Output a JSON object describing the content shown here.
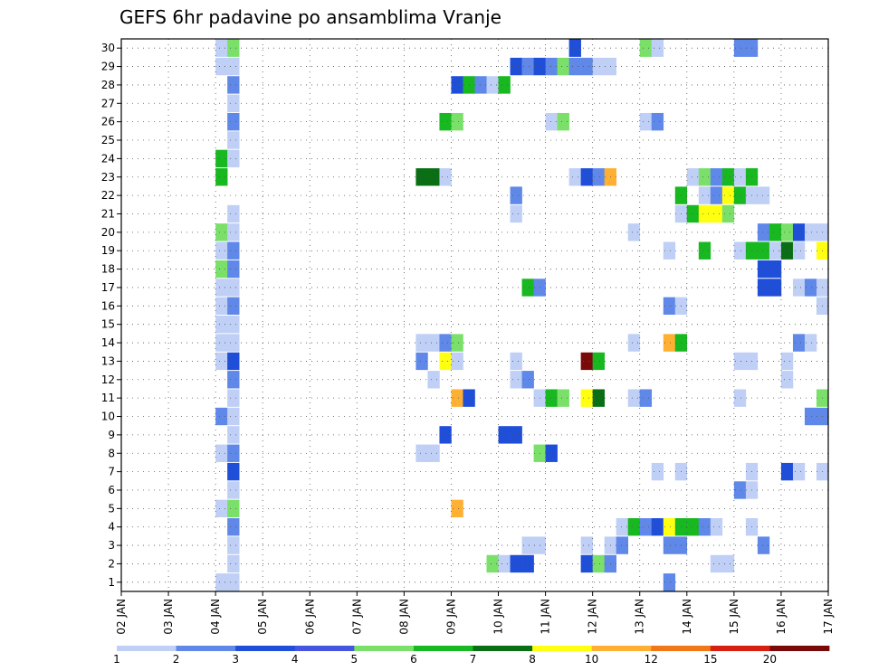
{
  "chart_data": {
    "type": "heatmap",
    "title": "GEFS 6hr padavine po ansamblima Vranje",
    "xlabel": "",
    "ylabel": "",
    "x_ticks": [
      "02 JAN",
      "03 JAN",
      "04 JAN",
      "05 JAN",
      "06 JAN",
      "07 JAN",
      "08 JAN",
      "09 JAN",
      "10 JAN",
      "11 JAN",
      "12 JAN",
      "13 JAN",
      "14 JAN",
      "15 JAN",
      "16 JAN",
      "17 JAN"
    ],
    "y_range": [
      1,
      30
    ],
    "grid": true,
    "legend_placement": "bottom",
    "colorbar": {
      "labels": [
        "1",
        "2",
        "3",
        "4",
        "5",
        "6",
        "7",
        "8",
        "10",
        "12",
        "15",
        "20"
      ],
      "colors": [
        "#bfcff5",
        "#5f88e8",
        "#1f4ed8",
        "#4455e0",
        "#7ae06a",
        "#18b820",
        "#0a6e14",
        "#ffff10",
        "#ffb033",
        "#f07818",
        "#d82010",
        "#7a0a0a"
      ]
    },
    "member_rows": [
      {
        "member": 30,
        "cells": [
          {
            "x": 2.0,
            "v": 1.5
          },
          {
            "x": 2.25,
            "v": 5
          },
          {
            "x": 9.5,
            "v": 3
          },
          {
            "x": 11.0,
            "v": 5
          },
          {
            "x": 11.25,
            "v": 1.5
          },
          {
            "x": 13.0,
            "v": 2.5
          },
          {
            "x": 13.25,
            "v": 2.5
          }
        ]
      },
      {
        "member": 29,
        "cells": [
          {
            "x": 2.0,
            "v": 1.5
          },
          {
            "x": 2.25,
            "v": 1.5
          },
          {
            "x": 8.25,
            "v": 3
          },
          {
            "x": 8.5,
            "v": 2.5
          },
          {
            "x": 8.75,
            "v": 3
          },
          {
            "x": 9.0,
            "v": 2.5
          },
          {
            "x": 9.25,
            "v": 5
          },
          {
            "x": 9.5,
            "v": 2.5
          },
          {
            "x": 9.75,
            "v": 2.5
          },
          {
            "x": 10.0,
            "v": 1.5
          },
          {
            "x": 10.25,
            "v": 1.5
          }
        ]
      },
      {
        "member": 28,
        "cells": [
          {
            "x": 2.25,
            "v": 2.5
          },
          {
            "x": 7.0,
            "v": 3
          },
          {
            "x": 7.25,
            "v": 6.5
          },
          {
            "x": 7.5,
            "v": 2.5
          },
          {
            "x": 7.75,
            "v": 1.5
          },
          {
            "x": 8.0,
            "v": 6
          }
        ]
      },
      {
        "member": 27,
        "cells": [
          {
            "x": 2.25,
            "v": 1.5
          }
        ]
      },
      {
        "member": 26,
        "cells": [
          {
            "x": 2.25,
            "v": 2.5
          },
          {
            "x": 6.75,
            "v": 6.5
          },
          {
            "x": 7.0,
            "v": 5
          },
          {
            "x": 9.0,
            "v": 1.5
          },
          {
            "x": 9.25,
            "v": 5
          },
          {
            "x": 11.0,
            "v": 1.5
          },
          {
            "x": 11.25,
            "v": 2.5
          }
        ]
      },
      {
        "member": 25,
        "cells": [
          {
            "x": 2.25,
            "v": 1.5
          }
        ]
      },
      {
        "member": 24,
        "cells": [
          {
            "x": 2.0,
            "v": 6.5
          },
          {
            "x": 2.25,
            "v": 1.5
          }
        ]
      },
      {
        "member": 23,
        "cells": [
          {
            "x": 2.0,
            "v": 6
          },
          {
            "x": 6.25,
            "v": 7.5
          },
          {
            "x": 6.5,
            "v": 7.5
          },
          {
            "x": 6.75,
            "v": 1.5
          },
          {
            "x": 9.5,
            "v": 1.5
          },
          {
            "x": 9.75,
            "v": 3
          },
          {
            "x": 10.0,
            "v": 2.5
          },
          {
            "x": 10.25,
            "v": 11
          },
          {
            "x": 12.0,
            "v": 1.5
          },
          {
            "x": 12.25,
            "v": 5
          },
          {
            "x": 12.5,
            "v": 2.5
          },
          {
            "x": 12.75,
            "v": 6.5
          },
          {
            "x": 13.0,
            "v": 1.5
          },
          {
            "x": 13.25,
            "v": 6.5
          }
        ]
      },
      {
        "member": 22,
        "cells": [
          {
            "x": 8.25,
            "v": 2.5
          },
          {
            "x": 11.75,
            "v": 6
          },
          {
            "x": 12.25,
            "v": 1.5
          },
          {
            "x": 12.5,
            "v": 2.5
          },
          {
            "x": 12.75,
            "v": 9
          },
          {
            "x": 13.0,
            "v": 6
          },
          {
            "x": 13.25,
            "v": 1.5
          },
          {
            "x": 13.5,
            "v": 1.5
          }
        ]
      },
      {
        "member": 21,
        "cells": [
          {
            "x": 2.25,
            "v": 1.5
          },
          {
            "x": 8.25,
            "v": 1.5
          },
          {
            "x": 11.75,
            "v": 1.5
          },
          {
            "x": 12.0,
            "v": 6
          },
          {
            "x": 12.25,
            "v": 9
          },
          {
            "x": 12.5,
            "v": 9
          },
          {
            "x": 12.75,
            "v": 5
          }
        ]
      },
      {
        "member": 20,
        "cells": [
          {
            "x": 2.0,
            "v": 5
          },
          {
            "x": 2.25,
            "v": 1.5
          },
          {
            "x": 10.75,
            "v": 1.5
          },
          {
            "x": 13.5,
            "v": 2.5
          },
          {
            "x": 13.75,
            "v": 6.5
          },
          {
            "x": 14.0,
            "v": 5
          },
          {
            "x": 14.25,
            "v": 3
          },
          {
            "x": 14.5,
            "v": 1.5
          },
          {
            "x": 14.75,
            "v": 1.5
          }
        ]
      },
      {
        "member": 19,
        "cells": [
          {
            "x": 2.0,
            "v": 1.5
          },
          {
            "x": 2.25,
            "v": 2.5
          },
          {
            "x": 11.5,
            "v": 1.5
          },
          {
            "x": 12.25,
            "v": 6.5
          },
          {
            "x": 13.0,
            "v": 1.5
          },
          {
            "x": 13.25,
            "v": 6
          },
          {
            "x": 13.5,
            "v": 6
          },
          {
            "x": 13.75,
            "v": 1.5
          },
          {
            "x": 14.0,
            "v": 7.5
          },
          {
            "x": 14.25,
            "v": 1.5
          },
          {
            "x": 14.75,
            "v": 9
          }
        ]
      },
      {
        "member": 18,
        "cells": [
          {
            "x": 2.0,
            "v": 5
          },
          {
            "x": 2.25,
            "v": 2.5
          },
          {
            "x": 13.5,
            "v": 3
          },
          {
            "x": 13.75,
            "v": 3
          }
        ]
      },
      {
        "member": 17,
        "cells": [
          {
            "x": 2.0,
            "v": 1.5
          },
          {
            "x": 2.25,
            "v": 1.5
          },
          {
            "x": 8.5,
            "v": 6
          },
          {
            "x": 8.75,
            "v": 2.5
          },
          {
            "x": 13.5,
            "v": 3
          },
          {
            "x": 13.75,
            "v": 3
          },
          {
            "x": 14.25,
            "v": 1.5
          },
          {
            "x": 14.5,
            "v": 2.5
          },
          {
            "x": 14.75,
            "v": 1.5
          }
        ]
      },
      {
        "member": 16,
        "cells": [
          {
            "x": 2.0,
            "v": 1.5
          },
          {
            "x": 2.25,
            "v": 2.5
          },
          {
            "x": 11.5,
            "v": 2.5
          },
          {
            "x": 11.75,
            "v": 1.5
          },
          {
            "x": 14.75,
            "v": 1.5
          }
        ]
      },
      {
        "member": 15,
        "cells": [
          {
            "x": 2.0,
            "v": 1.5
          },
          {
            "x": 2.25,
            "v": 1.5
          }
        ]
      },
      {
        "member": 14,
        "cells": [
          {
            "x": 2.0,
            "v": 1.5
          },
          {
            "x": 2.25,
            "v": 1.5
          },
          {
            "x": 6.25,
            "v": 1.5
          },
          {
            "x": 6.5,
            "v": 1.5
          },
          {
            "x": 6.75,
            "v": 2.5
          },
          {
            "x": 7.0,
            "v": 5
          },
          {
            "x": 10.75,
            "v": 1.5
          },
          {
            "x": 11.5,
            "v": 11
          },
          {
            "x": 11.75,
            "v": 6.5
          },
          {
            "x": 14.25,
            "v": 2.5
          },
          {
            "x": 14.5,
            "v": 1.5
          }
        ]
      },
      {
        "member": 13,
        "cells": [
          {
            "x": 2.0,
            "v": 1.5
          },
          {
            "x": 2.25,
            "v": 3
          },
          {
            "x": 6.25,
            "v": 2.5
          },
          {
            "x": 6.75,
            "v": 9
          },
          {
            "x": 7.0,
            "v": 1.5
          },
          {
            "x": 8.25,
            "v": 1.5
          },
          {
            "x": 9.75,
            "v": 20
          },
          {
            "x": 10.0,
            "v": 6
          },
          {
            "x": 13.0,
            "v": 1.5
          },
          {
            "x": 13.25,
            "v": 1.5
          },
          {
            "x": 14.0,
            "v": 1.5
          }
        ]
      },
      {
        "member": 12,
        "cells": [
          {
            "x": 2.25,
            "v": 2.5
          },
          {
            "x": 6.5,
            "v": 1.5
          },
          {
            "x": 8.25,
            "v": 1.5
          },
          {
            "x": 8.5,
            "v": 2.5
          },
          {
            "x": 14.0,
            "v": 1.5
          }
        ]
      },
      {
        "member": 11,
        "cells": [
          {
            "x": 2.25,
            "v": 1.5
          },
          {
            "x": 7.0,
            "v": 11
          },
          {
            "x": 7.25,
            "v": 3
          },
          {
            "x": 8.75,
            "v": 1.5
          },
          {
            "x": 9.0,
            "v": 6
          },
          {
            "x": 9.25,
            "v": 5
          },
          {
            "x": 9.75,
            "v": 9
          },
          {
            "x": 10.0,
            "v": 7.5
          },
          {
            "x": 10.75,
            "v": 1.5
          },
          {
            "x": 11.0,
            "v": 2.5
          },
          {
            "x": 13.0,
            "v": 1.5
          },
          {
            "x": 14.75,
            "v": 5
          }
        ]
      },
      {
        "member": 10,
        "cells": [
          {
            "x": 2.0,
            "v": 2.5
          },
          {
            "x": 2.25,
            "v": 1.5
          },
          {
            "x": 14.5,
            "v": 2.5
          },
          {
            "x": 14.75,
            "v": 2.5
          }
        ]
      },
      {
        "member": 9,
        "cells": [
          {
            "x": 2.25,
            "v": 1.5
          },
          {
            "x": 6.75,
            "v": 3
          },
          {
            "x": 8.0,
            "v": 3
          },
          {
            "x": 8.25,
            "v": 3
          }
        ]
      },
      {
        "member": 8,
        "cells": [
          {
            "x": 2.0,
            "v": 1.5
          },
          {
            "x": 2.25,
            "v": 2.5
          },
          {
            "x": 6.25,
            "v": 1.5
          },
          {
            "x": 6.5,
            "v": 1.5
          },
          {
            "x": 8.75,
            "v": 5
          },
          {
            "x": 9.0,
            "v": 3
          }
        ]
      },
      {
        "member": 7,
        "cells": [
          {
            "x": 2.25,
            "v": 3
          },
          {
            "x": 11.25,
            "v": 1.5
          },
          {
            "x": 11.75,
            "v": 1.5
          },
          {
            "x": 13.25,
            "v": 1.5
          },
          {
            "x": 14.0,
            "v": 3
          },
          {
            "x": 14.25,
            "v": 1.5
          },
          {
            "x": 14.75,
            "v": 1.5
          }
        ]
      },
      {
        "member": 6,
        "cells": [
          {
            "x": 2.25,
            "v": 1.5
          },
          {
            "x": 13.0,
            "v": 2.5
          },
          {
            "x": 13.25,
            "v": 1.5
          }
        ]
      },
      {
        "member": 5,
        "cells": [
          {
            "x": 2.0,
            "v": 1.5
          },
          {
            "x": 2.25,
            "v": 5
          },
          {
            "x": 7.0,
            "v": 11
          }
        ]
      },
      {
        "member": 4,
        "cells": [
          {
            "x": 2.25,
            "v": 2.5
          },
          {
            "x": 10.5,
            "v": 1.5
          },
          {
            "x": 10.75,
            "v": 6.5
          },
          {
            "x": 11.0,
            "v": 2.5
          },
          {
            "x": 11.25,
            "v": 3
          },
          {
            "x": 11.5,
            "v": 9
          },
          {
            "x": 11.75,
            "v": 6.5
          },
          {
            "x": 12.0,
            "v": 6
          },
          {
            "x": 12.25,
            "v": 2.5
          },
          {
            "x": 12.5,
            "v": 1.5
          },
          {
            "x": 13.25,
            "v": 1.5
          }
        ]
      },
      {
        "member": 3,
        "cells": [
          {
            "x": 2.25,
            "v": 1.5
          },
          {
            "x": 8.5,
            "v": 1.5
          },
          {
            "x": 8.75,
            "v": 1.5
          },
          {
            "x": 9.75,
            "v": 1.5
          },
          {
            "x": 10.25,
            "v": 1.5
          },
          {
            "x": 10.5,
            "v": 2.5
          },
          {
            "x": 11.5,
            "v": 2.5
          },
          {
            "x": 11.75,
            "v": 2.5
          },
          {
            "x": 13.5,
            "v": 2.5
          }
        ]
      },
      {
        "member": 2,
        "cells": [
          {
            "x": 2.25,
            "v": 1.5
          },
          {
            "x": 7.75,
            "v": 5
          },
          {
            "x": 8.0,
            "v": 1.5
          },
          {
            "x": 8.25,
            "v": 3
          },
          {
            "x": 8.5,
            "v": 3
          },
          {
            "x": 9.75,
            "v": 3
          },
          {
            "x": 10.0,
            "v": 5
          },
          {
            "x": 10.25,
            "v": 2.5
          },
          {
            "x": 12.5,
            "v": 1.5
          },
          {
            "x": 12.75,
            "v": 1.5
          }
        ]
      },
      {
        "member": 1,
        "cells": [
          {
            "x": 2.0,
            "v": 1.5
          },
          {
            "x": 2.25,
            "v": 1.5
          },
          {
            "x": 11.5,
            "v": 2.5
          }
        ]
      }
    ]
  }
}
